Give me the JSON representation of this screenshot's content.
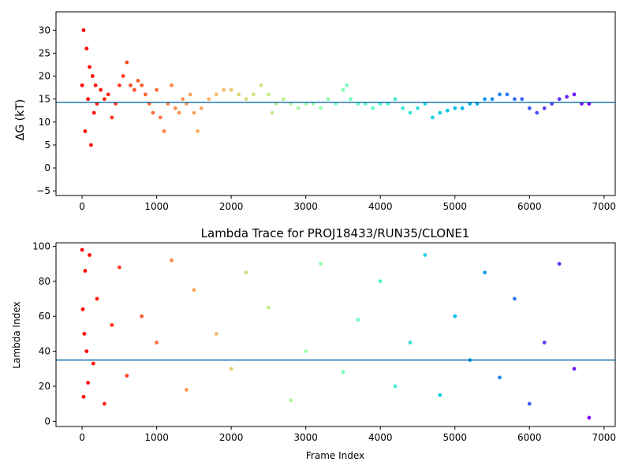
{
  "chart_data": [
    {
      "type": "scatter",
      "title": "",
      "xlabel": "",
      "ylabel": "ΔG (kT)",
      "xlim": [
        -350,
        7150
      ],
      "ylim": [
        -6,
        34
      ],
      "x_ticks": [
        0,
        1000,
        2000,
        3000,
        4000,
        5000,
        6000,
        7000
      ],
      "y_ticks": [
        -5,
        0,
        5,
        10,
        15,
        20,
        25,
        30
      ],
      "hline": 14.3,
      "hline_color": "#1f77b4",
      "colormap": "rainbow (frame index, red at 0 to violet at end)",
      "grid": false,
      "x_max_frame": 6800,
      "series": [
        {
          "x": [
            0,
            20,
            40,
            60,
            80,
            100,
            120,
            140,
            160,
            180,
            200,
            250,
            300,
            350,
            400,
            450,
            500,
            550,
            600,
            650,
            700,
            750,
            800,
            850,
            900,
            950,
            1000,
            1050,
            1100,
            1150,
            1200,
            1250,
            1300,
            1350,
            1400,
            1450,
            1500,
            1550,
            1600,
            1700,
            1800,
            1900,
            2000,
            2100,
            2200,
            2300,
            2400,
            2500,
            2550,
            2600,
            2700,
            2800,
            2900,
            3000,
            3100,
            3200,
            3300,
            3400,
            3500,
            3550,
            3600,
            3700,
            3800,
            3900,
            4000,
            4100,
            4200,
            4300,
            4400,
            4500,
            4600,
            4700,
            4800,
            4900,
            5000,
            5100,
            5200,
            5300,
            5400,
            5500,
            5600,
            5700,
            5800,
            5900,
            6000,
            6100,
            6200,
            6300,
            6400,
            6500,
            6600,
            6700,
            6800
          ],
          "y": [
            18,
            30,
            8,
            26,
            15,
            22,
            5,
            20,
            12,
            18,
            14,
            17,
            15,
            16,
            11,
            14,
            18,
            20,
            23,
            18,
            17,
            19,
            18,
            16,
            14,
            12,
            17,
            11,
            8,
            14,
            18,
            13,
            12,
            15,
            14,
            16,
            12,
            8,
            13,
            15,
            16,
            17,
            17,
            16,
            15,
            16,
            18,
            16,
            12,
            14,
            15,
            14,
            13,
            14,
            14,
            13,
            15,
            14,
            17,
            18,
            15,
            14,
            14,
            13,
            14,
            14,
            15,
            13,
            12,
            13,
            14,
            11,
            12,
            12.5,
            13,
            13,
            14,
            14,
            15,
            15,
            16,
            16,
            15,
            15,
            13,
            12,
            13,
            14,
            15,
            15.5,
            16,
            14,
            14
          ]
        }
      ]
    },
    {
      "type": "scatter",
      "title": "Lambda Trace for PROJ18433/RUN35/CLONE1",
      "xlabel": "Frame Index",
      "ylabel": "Lambda Index",
      "xlim": [
        -350,
        7150
      ],
      "ylim": [
        -3,
        102
      ],
      "x_ticks": [
        0,
        1000,
        2000,
        3000,
        4000,
        5000,
        6000,
        7000
      ],
      "y_ticks": [
        0,
        20,
        40,
        60,
        80,
        100
      ],
      "hline": 35,
      "hline_color": "#1f77b4",
      "colormap": "rainbow (frame index, red at 0 to violet at end)",
      "grid": false,
      "x_max_frame": 6800,
      "series": [
        {
          "x": [
            0,
            10,
            20,
            30,
            40,
            60,
            80,
            100,
            150,
            200,
            300,
            400,
            500,
            600,
            800,
            1000,
            1200,
            1400,
            1500,
            1800,
            2000,
            2200,
            2500,
            2800,
            3000,
            3200,
            3500,
            3700,
            4000,
            4200,
            4400,
            4600,
            4800,
            5000,
            5200,
            5400,
            5600,
            5800,
            6000,
            6200,
            6400,
            6600,
            6800
          ],
          "y": [
            98,
            64,
            14,
            50,
            86,
            40,
            22,
            95,
            33,
            70,
            10,
            55,
            88,
            26,
            60,
            45,
            92,
            18,
            75,
            50,
            30,
            85,
            65,
            12,
            40,
            90,
            28,
            58,
            80,
            20,
            45,
            95,
            15,
            60,
            35,
            85,
            25,
            70,
            10,
            45,
            90,
            30,
            2
          ]
        }
      ]
    }
  ]
}
